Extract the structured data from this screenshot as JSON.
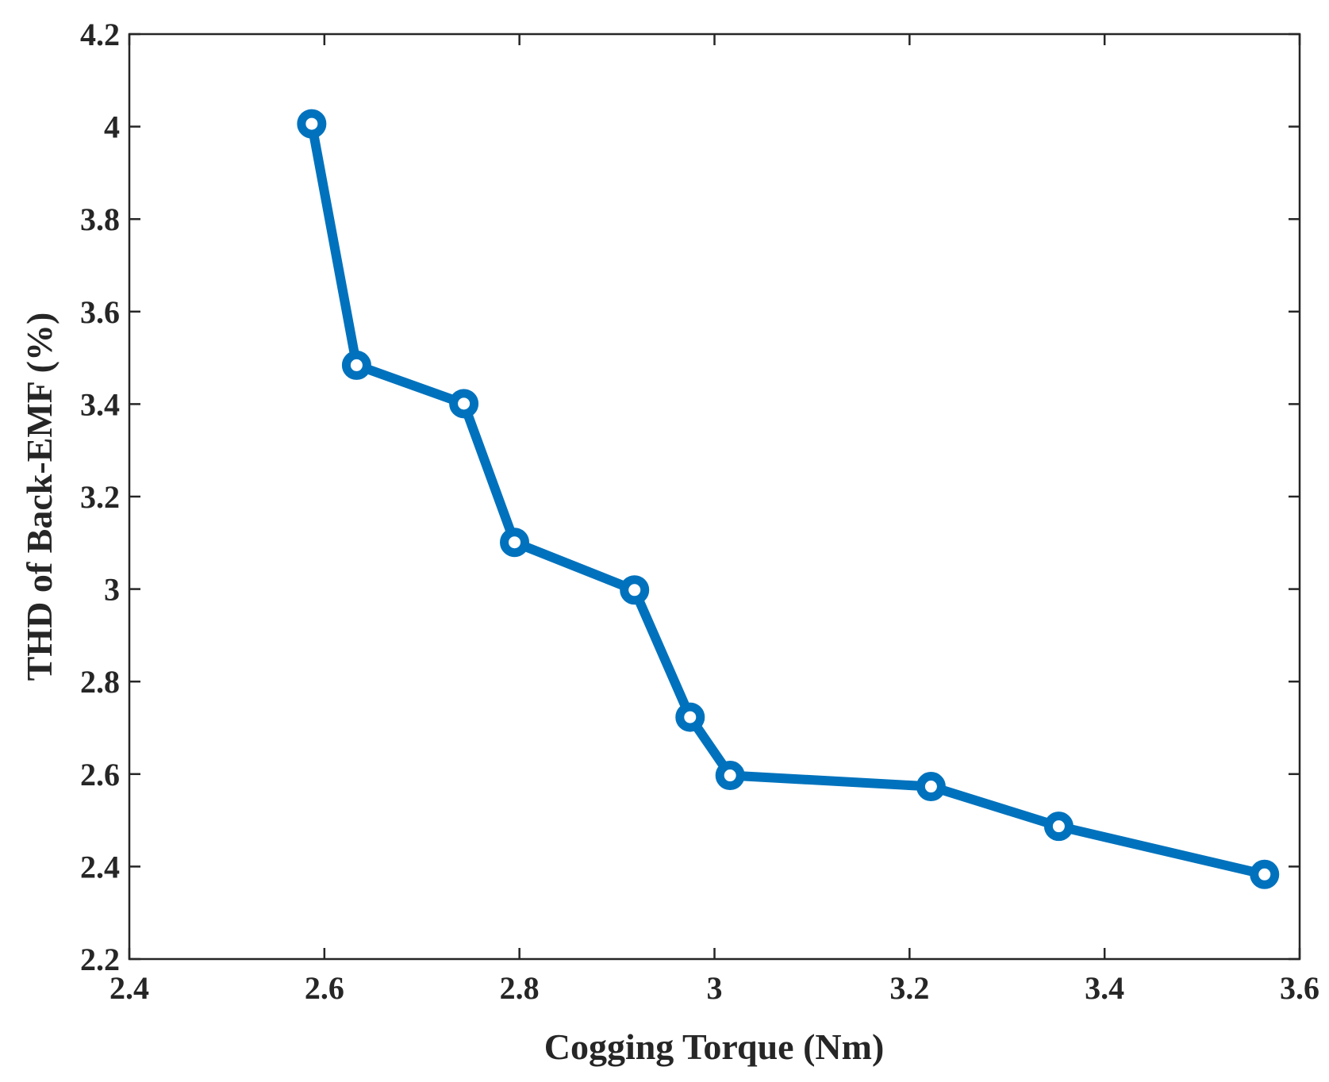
{
  "chart_data": {
    "type": "line",
    "title": "",
    "xlabel": "Cogging Torque (Nm)",
    "ylabel": "THD of Back-EMF (%)",
    "xlim": [
      2.4,
      3.6
    ],
    "ylim": [
      2.2,
      4.2
    ],
    "xticks": [
      2.4,
      2.6,
      2.8,
      3.0,
      3.2,
      3.4,
      3.6
    ],
    "xtick_labels": [
      "2.4",
      "2.6",
      "2.8",
      "3",
      "3.2",
      "3.4",
      "3.6"
    ],
    "yticks": [
      2.2,
      2.4,
      2.6,
      2.8,
      3.0,
      3.2,
      3.4,
      3.6,
      3.8,
      4.0,
      4.2
    ],
    "ytick_labels": [
      "2.2",
      "2.4",
      "2.6",
      "2.8",
      "3",
      "3.2",
      "3.4",
      "3.6",
      "3.8",
      "4",
      "4.2"
    ],
    "grid": false,
    "series": [
      {
        "color": "#0072BD",
        "marker": "circle",
        "x": [
          2.587,
          2.633,
          2.743,
          2.795,
          2.918,
          2.975,
          3.016,
          3.222,
          3.353,
          3.564
        ],
        "y": [
          4.006,
          3.484,
          3.401,
          3.101,
          2.998,
          2.723,
          2.597,
          2.573,
          2.487,
          2.383
        ]
      }
    ]
  }
}
